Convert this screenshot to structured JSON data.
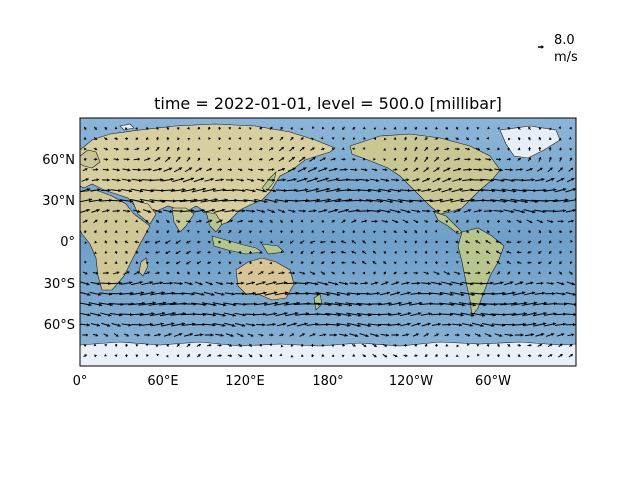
{
  "title": "time = 2022-01-01, level = 500.0 [millibar]",
  "quiver_key": {
    "value": "8.0",
    "unit": "m/s"
  },
  "x_ticks": [
    "0°",
    "60°E",
    "120°E",
    "180°",
    "120°W",
    "60°W"
  ],
  "y_ticks": [
    "60°N",
    "30°N",
    "0°",
    "30°S",
    "60°S"
  ],
  "colors": {
    "ocean": "#7aa9cf",
    "land": "#d9d2a6",
    "land_green": "#a9bf86",
    "ice": "#e8eef6",
    "coast": "#1a1a1a",
    "arrow": "#000000"
  },
  "chart_data": {
    "type": "quiver",
    "projection": "PlateCarree",
    "central_longitude": 180,
    "lon_range": [
      0,
      360
    ],
    "lat_range": [
      -90,
      90
    ],
    "variable": "wind vectors at 500 mb",
    "reference_arrow_ms": 8.0,
    "zonal_bands": [
      {
        "lat": 80,
        "u": 0,
        "v": 0
      },
      {
        "lat": 60,
        "u": 4,
        "v": 2
      },
      {
        "lat": 45,
        "u": 10,
        "v": 1
      },
      {
        "lat": 30,
        "u": 16,
        "v": 0
      },
      {
        "lat": 15,
        "u": 4,
        "v": 0
      },
      {
        "lat": 0,
        "u": -3,
        "v": 0
      },
      {
        "lat": -15,
        "u": -2,
        "v": 0
      },
      {
        "lat": -30,
        "u": 10,
        "v": 0
      },
      {
        "lat": -45,
        "u": 16,
        "v": 0
      },
      {
        "lat": -60,
        "u": 12,
        "v": 0
      },
      {
        "lat": -75,
        "u": 2,
        "v": 0
      }
    ]
  }
}
